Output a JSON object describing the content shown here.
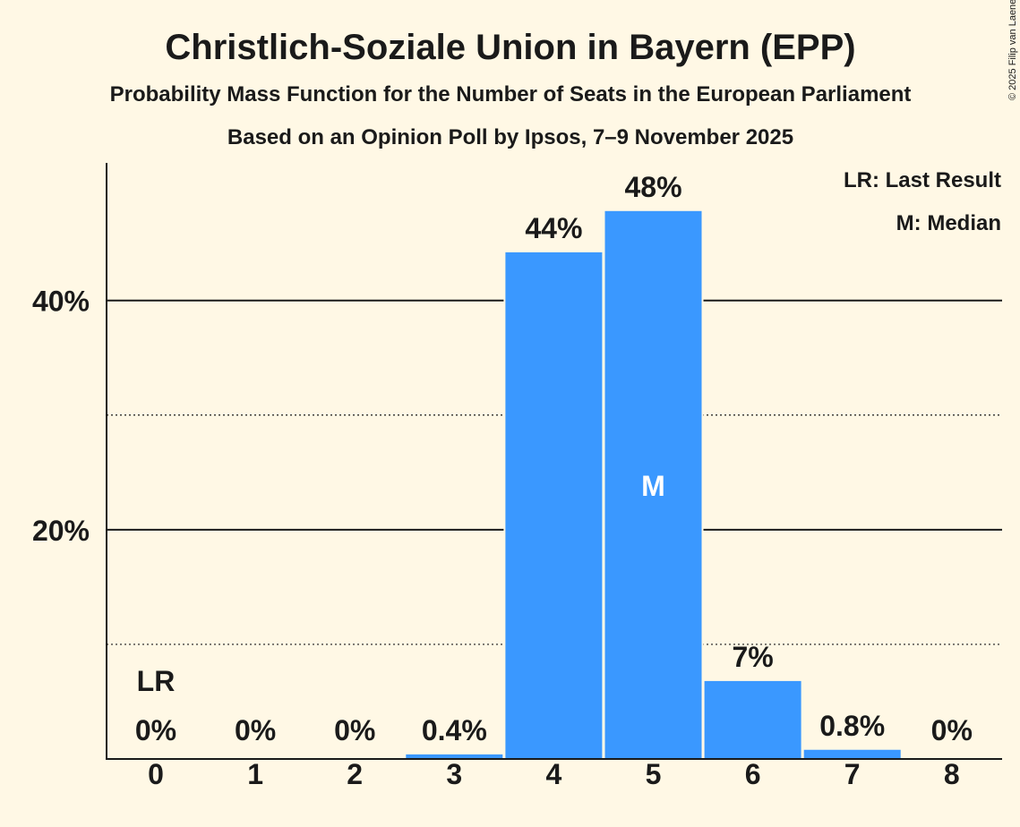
{
  "chart_data": {
    "type": "bar",
    "title": "Christlich-Soziale Union in Bayern (EPP)",
    "subtitle": "Probability Mass Function for the Number of Seats in the European Parliament",
    "subtitle2": "Based on an Opinion Poll by Ipsos, 7–9 November 2025",
    "copyright": "© 2025 Filip van Laenen",
    "legend": {
      "placement": "top-right",
      "last_result": "LR: Last Result",
      "median": "M: Median"
    },
    "categories": [
      "0",
      "1",
      "2",
      "3",
      "4",
      "5",
      "6",
      "7",
      "8"
    ],
    "values": [
      0,
      0,
      0,
      0.4,
      44.2,
      47.8,
      6.8,
      0.8,
      0
    ],
    "value_labels": [
      "0%",
      "0%",
      "0%",
      "0.4%",
      "44%",
      "48%",
      "7%",
      "0.8%",
      "0%"
    ],
    "last_result_index": 0,
    "last_result_marker": "LR",
    "median_index": 5,
    "median_marker": "M",
    "ylim": [
      0,
      52
    ],
    "yticks_major": [
      20,
      40
    ],
    "yticks_major_labels": [
      "20%",
      "40%"
    ],
    "yticks_minor": [
      10,
      30
    ],
    "xlabel": "",
    "ylabel": "",
    "bar_color": "#3a98ff",
    "grid": true
  }
}
